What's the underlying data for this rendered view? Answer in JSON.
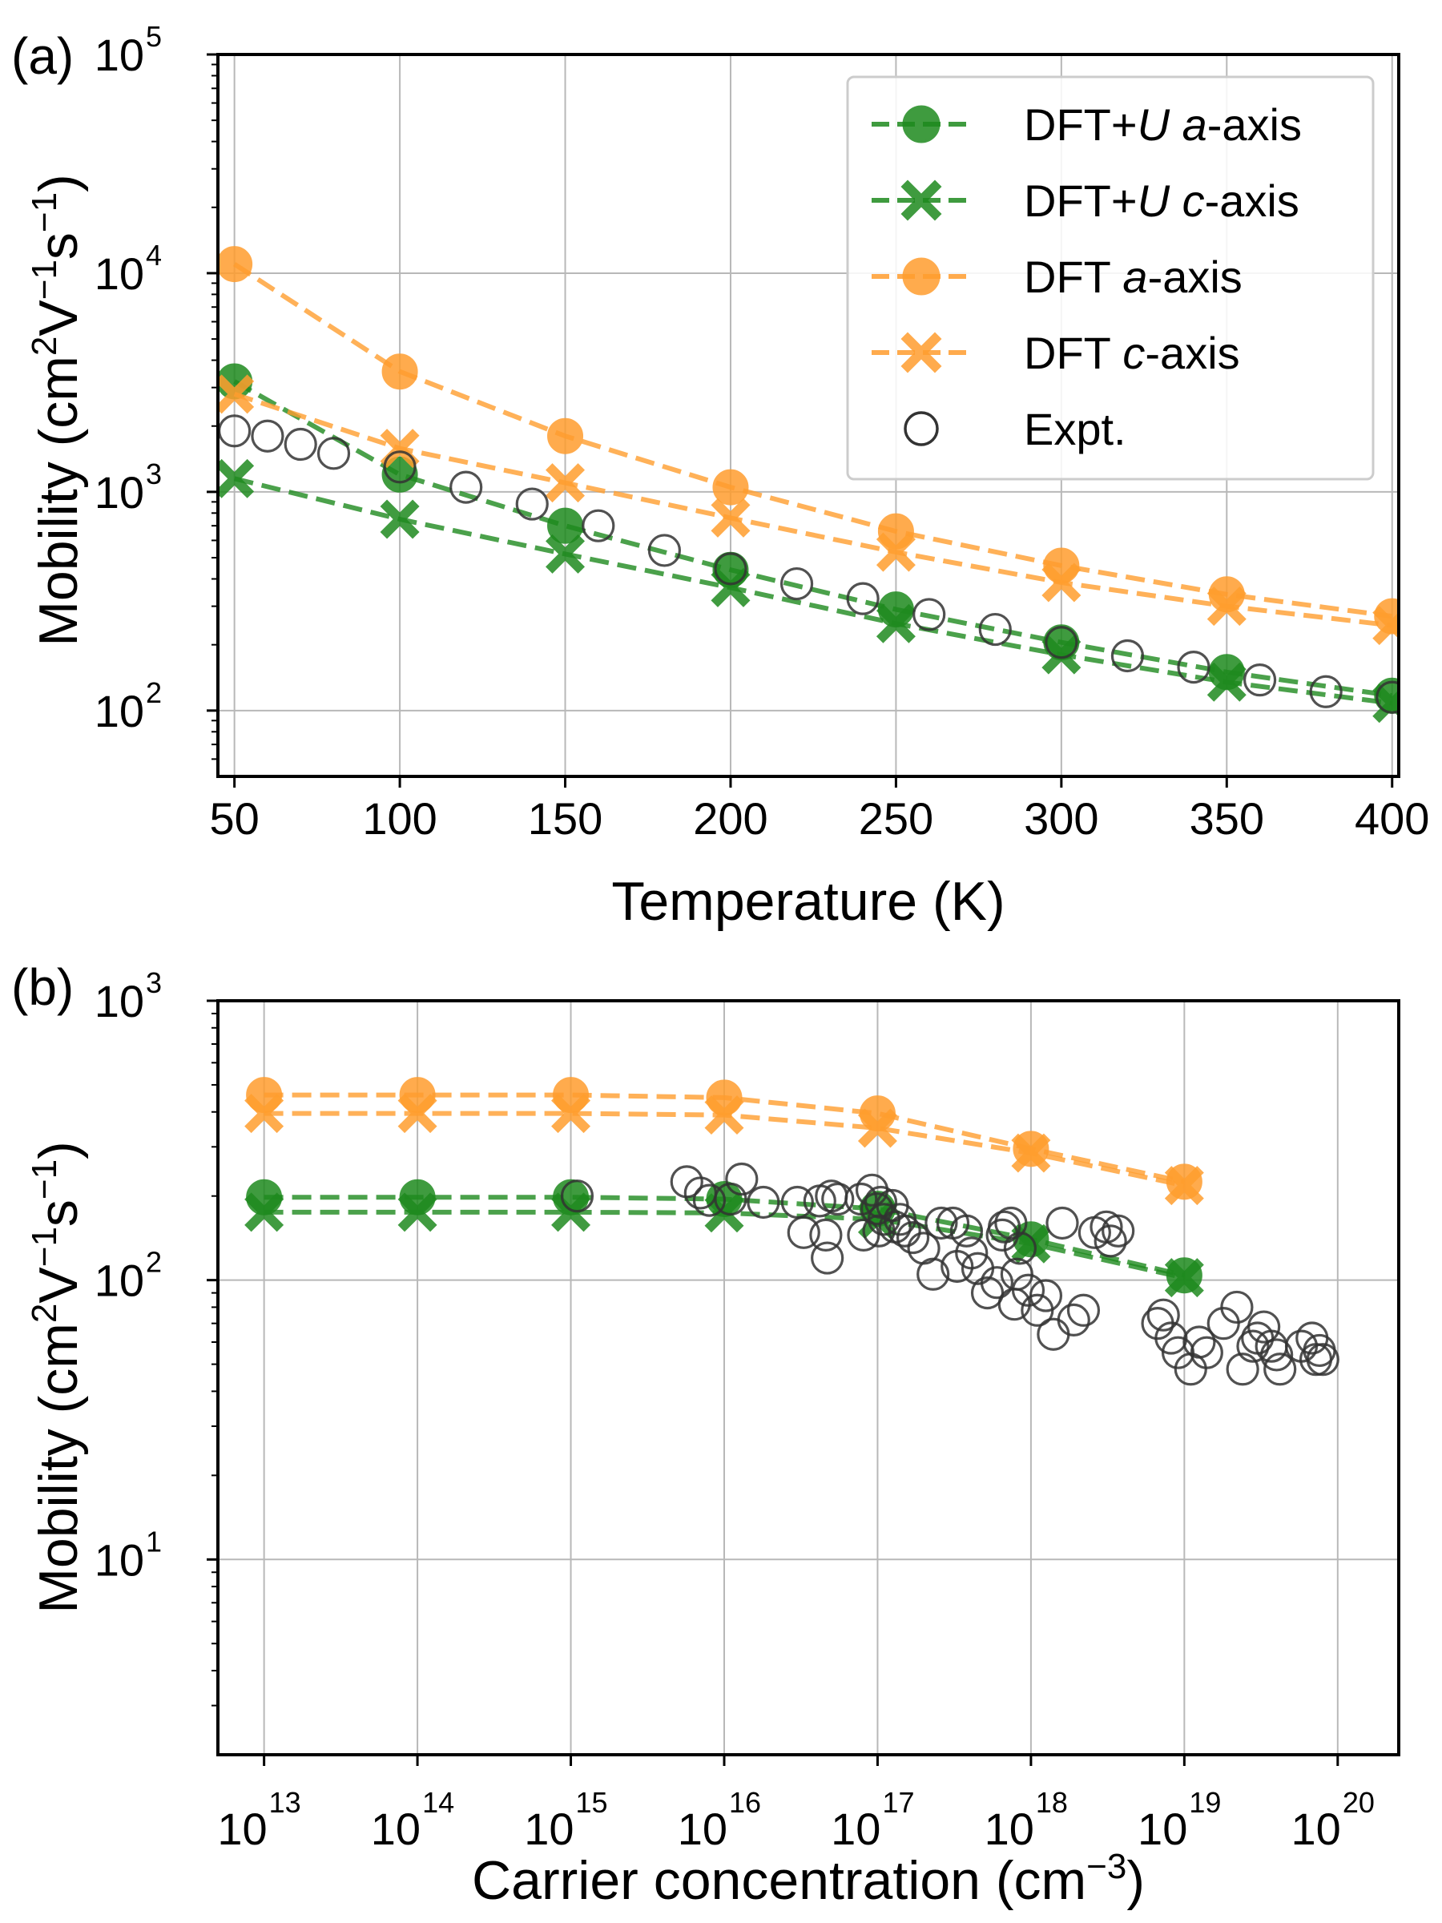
{
  "chart_data": [
    {
      "type": "line",
      "panel_label": "(a)",
      "xlabel": "Temperature (K)",
      "ylabel": {
        "prefix": "Mobility (cm",
        "sup1": "2",
        "mid1": "V",
        "sup2": "−1",
        "mid2": "s",
        "sup3": "−1",
        "suffix": ")"
      },
      "xscale": "linear",
      "yscale": "log",
      "xlim": [
        45,
        402
      ],
      "ylim": [
        50,
        100000
      ],
      "grid": true,
      "x_ticks": [
        50,
        100,
        150,
        200,
        250,
        300,
        350,
        400
      ],
      "x_tick_labels": [
        "50",
        "100",
        "150",
        "200",
        "250",
        "300",
        "350",
        "400"
      ],
      "y_ticks": [
        {
          "base": "10",
          "exp": "2",
          "value": 100
        },
        {
          "base": "10",
          "exp": "3",
          "value": 1000
        },
        {
          "base": "10",
          "exp": "4",
          "value": 10000
        },
        {
          "base": "10",
          "exp": "5",
          "value": 100000
        }
      ],
      "legend_position": "top-right",
      "series": [
        {
          "name_parts": [
            "DFT+",
            "U",
            " ",
            "a",
            "-axis"
          ],
          "color": "#1e8a1e",
          "marker": "circle",
          "x": [
            50,
            100,
            150,
            200,
            250,
            300,
            350,
            400
          ],
          "values": [
            3200,
            1200,
            700,
            440,
            290,
            205,
            150,
            117
          ]
        },
        {
          "name_parts": [
            "DFT+",
            "U",
            " ",
            "c",
            "-axis"
          ],
          "color": "#1e8a1e",
          "marker": "x",
          "x": [
            50,
            100,
            150,
            200,
            250,
            300,
            350,
            400
          ],
          "values": [
            1150,
            750,
            520,
            365,
            250,
            180,
            135,
            108
          ]
        },
        {
          "name_parts": [
            "DFT ",
            "",
            "",
            "a",
            "-axis"
          ],
          "color": "#ff9d2e",
          "marker": "circle",
          "x": [
            50,
            100,
            150,
            200,
            250,
            300,
            350,
            400
          ],
          "values": [
            11000,
            3550,
            1800,
            1050,
            660,
            460,
            340,
            270
          ]
        },
        {
          "name_parts": [
            "DFT ",
            "",
            "",
            "c",
            "-axis"
          ],
          "color": "#ff9d2e",
          "marker": "x",
          "x": [
            50,
            100,
            150,
            200,
            250,
            300,
            350,
            400
          ],
          "values": [
            2800,
            1580,
            1100,
            760,
            530,
            385,
            300,
            245
          ]
        },
        {
          "name_parts": [
            "Expt.",
            "",
            "",
            "",
            ""
          ],
          "color": "#333333",
          "marker": "open-circle",
          "x": [
            50,
            60,
            70,
            80,
            100,
            120,
            140,
            160,
            180,
            200,
            220,
            240,
            260,
            280,
            300,
            320,
            340,
            360,
            380,
            400
          ],
          "values": [
            1900,
            1800,
            1650,
            1500,
            1300,
            1050,
            880,
            700,
            540,
            445,
            380,
            325,
            275,
            235,
            205,
            178,
            158,
            138,
            122,
            115
          ]
        }
      ]
    },
    {
      "type": "line",
      "panel_label": "(b)",
      "xlabel": {
        "prefix": "Carrier concentration (cm",
        "sup": "−3",
        "suffix": ")"
      },
      "ylabel": {
        "prefix": "Mobility (cm",
        "sup1": "2",
        "mid1": "V",
        "sup2": "−1",
        "mid2": "s",
        "sup3": "−1",
        "suffix": ")"
      },
      "xscale": "log",
      "yscale": "log",
      "xlim": [
        5000000000000.0,
        2.5e+20
      ],
      "ylim": [
        2,
        1000
      ],
      "grid": true,
      "x_ticks": [
        {
          "base": "10",
          "exp": "13",
          "value": 10000000000000.0
        },
        {
          "base": "10",
          "exp": "14",
          "value": 100000000000000.0
        },
        {
          "base": "10",
          "exp": "15",
          "value": 1000000000000000.0
        },
        {
          "base": "10",
          "exp": "16",
          "value": 1e+16
        },
        {
          "base": "10",
          "exp": "17",
          "value": 1e+17
        },
        {
          "base": "10",
          "exp": "18",
          "value": 1e+18
        },
        {
          "base": "10",
          "exp": "19",
          "value": 1e+19
        },
        {
          "base": "10",
          "exp": "20",
          "value": 1e+20
        }
      ],
      "y_ticks": [
        {
          "base": "10",
          "exp": "1",
          "value": 10
        },
        {
          "base": "10",
          "exp": "2",
          "value": 100
        },
        {
          "base": "10",
          "exp": "3",
          "value": 1000
        }
      ],
      "series": [
        {
          "name": "DFT+U a-axis",
          "color": "#1e8a1e",
          "marker": "circle",
          "x": [
            10000000000000.0,
            100000000000000.0,
            1000000000000000.0,
            1e+16,
            1e+17,
            1e+18,
            1e+19
          ],
          "values": [
            198,
            198,
            198,
            195,
            180,
            140,
            104
          ]
        },
        {
          "name": "DFT+U c-axis",
          "color": "#1e8a1e",
          "marker": "x",
          "x": [
            10000000000000.0,
            100000000000000.0,
            1000000000000000.0,
            1e+16,
            1e+17,
            1e+18,
            1e+19
          ],
          "values": [
            175,
            175,
            175,
            174,
            165,
            135,
            102
          ]
        },
        {
          "name": "DFT a-axis",
          "color": "#ff9d2e",
          "marker": "circle",
          "x": [
            10000000000000.0,
            100000000000000.0,
            1000000000000000.0,
            1e+16,
            1e+17,
            1e+18,
            1e+19
          ],
          "values": [
            460,
            460,
            460,
            450,
            395,
            295,
            225
          ]
        },
        {
          "name": "DFT c-axis",
          "color": "#ff9d2e",
          "marker": "x",
          "x": [
            10000000000000.0,
            100000000000000.0,
            1000000000000000.0,
            1e+16,
            1e+17,
            1e+18,
            1e+19
          ],
          "values": [
            395,
            395,
            395,
            390,
            350,
            285,
            218
          ]
        },
        {
          "name": "Expt.",
          "color": "#333333",
          "marker": "open-circle",
          "x": [
            1100000000000000.0,
            5700000000000000.0,
            7000000000000000.0,
            8000000000000000.0,
            1.1e+16,
            1.3e+16,
            1.8e+16,
            3e+16,
            3.3e+16,
            4.2e+16,
            4.6e+16,
            4.7e+16,
            5e+16,
            5.5e+16,
            7.8e+16,
            8.1e+16,
            9.2e+16,
            9.9e+16,
            1.02e+17,
            1.05e+17,
            1.1e+17,
            1.25e+17,
            1.3e+17,
            1.4e+17,
            1.5e+17,
            1.7e+17,
            2e+17,
            2.3e+17,
            2.6e+17,
            3.1e+17,
            3.3e+17,
            3.8e+17,
            4.1e+17,
            4.5e+17,
            5.2e+17,
            6e+17,
            6.5e+17,
            6.7e+17,
            7.4e+17,
            7.8e+17,
            8.1e+17,
            8.5e+17,
            9.6e+17,
            1.1e+18,
            1.25e+18,
            1.4e+18,
            1.6e+18,
            1.9e+18,
            2.2e+18,
            2.6e+18,
            3.1e+18,
            3.3e+18,
            3.7e+18,
            6.7e+18,
            7.3e+18,
            8.2e+18,
            9.1e+18,
            1.1e+19,
            1.25e+19,
            1.4e+19,
            1.8e+19,
            2.2e+19,
            2.4e+19,
            2.8e+19,
            3e+19,
            3.3e+19,
            3.7e+19,
            4e+19,
            4.2e+19,
            5.8e+19,
            6.8e+19,
            7.2e+19,
            7.6e+19,
            8e+19
          ],
          "values": [
            200,
            225,
            205,
            193,
            195,
            230,
            190,
            190,
            148,
            192,
            145,
            120,
            200,
            195,
            195,
            145,
            210,
            180,
            150,
            190,
            165,
            185,
            155,
            165,
            150,
            142,
            130,
            105,
            160,
            160,
            112,
            150,
            125,
            110,
            90,
            98,
            145,
            155,
            160,
            82,
            105,
            130,
            92,
            78,
            88,
            64,
            160,
            72,
            78,
            148,
            155,
            138,
            150,
            70,
            75,
            62,
            55,
            48,
            60,
            55,
            70,
            80,
            48,
            58,
            62,
            68,
            58,
            54,
            48,
            58,
            62,
            52,
            56,
            52
          ]
        }
      ]
    }
  ]
}
